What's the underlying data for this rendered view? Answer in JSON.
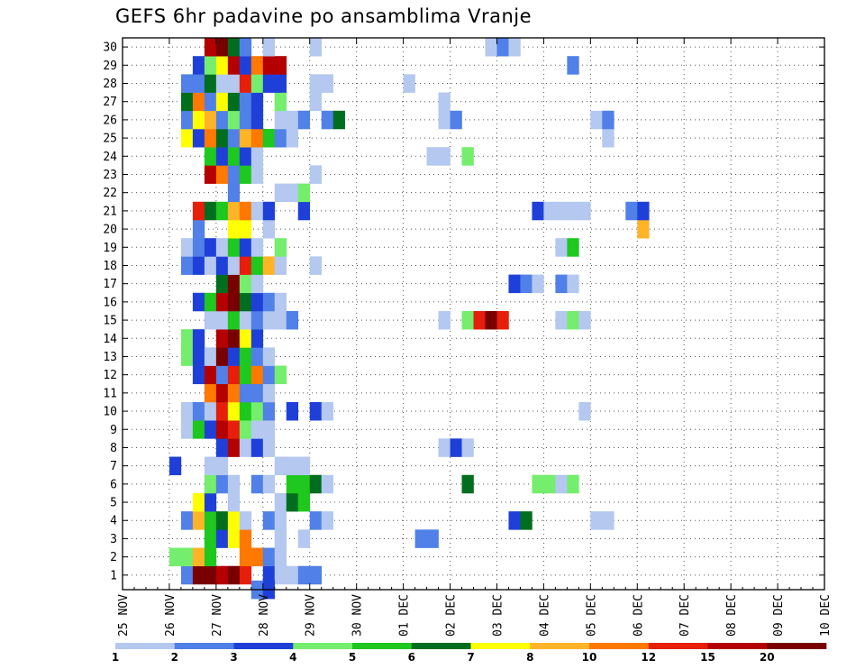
{
  "chart_data": {
    "type": "heatmap",
    "title": "GEFS 6hr padavine po ansamblima Vranje",
    "x_ticks": [
      "25 NOV",
      "26 NOV",
      "27 NOV",
      "28 NOV",
      "29 NOV",
      "30 NOV",
      "01 DEC",
      "02 DEC",
      "03 DEC",
      "04 DEC",
      "05 DEC",
      "06 DEC",
      "07 DEC",
      "08 DEC",
      "09 DEC",
      "10 DEC"
    ],
    "y_ticks": [
      "1",
      "2",
      "3",
      "4",
      "5",
      "6",
      "7",
      "8",
      "9",
      "10",
      "11",
      "12",
      "13",
      "14",
      "15",
      "16",
      "17",
      "18",
      "19",
      "20",
      "21",
      "22",
      "23",
      "24",
      "25",
      "26",
      "27",
      "28",
      "29",
      "30"
    ],
    "x_unit": "6-hour steps from 25 NOV 00Z",
    "ylim": [
      0.2,
      30.5
    ],
    "legend": {
      "labels": [
        "1",
        "2",
        "3",
        "4",
        "5",
        "6",
        "7",
        "8",
        "10",
        "12",
        "15",
        "20"
      ],
      "colors": [
        "#b4c8f0",
        "#5080e8",
        "#1f40d8",
        "#74ee6c",
        "#1ec81e",
        "#006e1e",
        "#ffff00",
        "#ffb428",
        "#ff7800",
        "#e61e0a",
        "#b40000",
        "#780000"
      ]
    },
    "cells": [
      [
        5,
        1,
        1
      ],
      [
        6,
        1,
        11
      ],
      [
        7,
        1,
        11
      ],
      [
        8,
        1,
        10
      ],
      [
        9,
        1,
        11
      ],
      [
        10,
        1,
        9
      ],
      [
        12,
        1,
        2
      ],
      [
        13,
        1,
        0
      ],
      [
        14,
        1,
        0
      ],
      [
        15,
        1,
        1
      ],
      [
        16,
        1,
        1
      ],
      [
        11,
        0.2,
        1
      ],
      [
        12,
        0.2,
        2
      ],
      [
        4,
        2,
        3
      ],
      [
        5,
        2,
        3
      ],
      [
        6,
        2,
        7
      ],
      [
        7,
        2,
        4
      ],
      [
        10,
        2,
        8
      ],
      [
        11,
        2,
        8
      ],
      [
        12,
        2,
        1
      ],
      [
        13,
        2,
        0
      ],
      [
        7,
        3,
        4
      ],
      [
        8,
        3,
        2
      ],
      [
        9,
        3,
        6
      ],
      [
        10,
        3,
        8
      ],
      [
        13,
        3,
        0
      ],
      [
        15,
        3,
        0
      ],
      [
        25,
        3,
        1
      ],
      [
        26,
        3,
        1
      ],
      [
        5,
        4,
        1
      ],
      [
        6,
        4,
        7
      ],
      [
        7,
        4,
        4
      ],
      [
        8,
        4,
        5
      ],
      [
        9,
        4,
        6
      ],
      [
        10,
        4,
        0
      ],
      [
        12,
        4,
        1
      ],
      [
        13,
        4,
        0
      ],
      [
        16,
        4,
        1
      ],
      [
        17,
        4,
        0
      ],
      [
        33,
        4,
        2
      ],
      [
        34,
        4,
        5
      ],
      [
        40,
        4,
        0
      ],
      [
        41,
        4,
        0
      ],
      [
        6,
        5,
        6
      ],
      [
        7,
        5,
        2
      ],
      [
        9,
        5,
        0
      ],
      [
        13,
        5,
        0
      ],
      [
        14,
        5,
        5
      ],
      [
        15,
        5,
        4
      ],
      [
        7,
        6,
        3
      ],
      [
        8,
        6,
        1
      ],
      [
        9,
        6,
        0
      ],
      [
        11,
        6,
        1
      ],
      [
        12,
        6,
        0
      ],
      [
        14,
        6,
        4
      ],
      [
        15,
        6,
        4
      ],
      [
        16,
        6,
        5
      ],
      [
        17,
        6,
        0
      ],
      [
        29,
        6,
        5
      ],
      [
        35,
        6,
        3
      ],
      [
        36,
        6,
        3
      ],
      [
        37,
        6,
        0
      ],
      [
        38,
        6,
        3
      ],
      [
        4,
        7,
        2
      ],
      [
        7,
        7,
        0
      ],
      [
        8,
        7,
        0
      ],
      [
        13,
        7,
        0
      ],
      [
        14,
        7,
        0
      ],
      [
        15,
        7,
        0
      ],
      [
        8,
        8,
        2
      ],
      [
        9,
        8,
        10
      ],
      [
        10,
        8,
        0
      ],
      [
        11,
        8,
        2
      ],
      [
        12,
        8,
        0
      ],
      [
        27,
        8,
        0
      ],
      [
        28,
        8,
        2
      ],
      [
        29,
        8,
        0
      ],
      [
        5,
        9,
        0
      ],
      [
        6,
        9,
        4
      ],
      [
        7,
        9,
        2
      ],
      [
        8,
        9,
        10
      ],
      [
        9,
        9,
        9
      ],
      [
        10,
        9,
        3
      ],
      [
        11,
        9,
        0
      ],
      [
        12,
        9,
        0
      ],
      [
        5,
        10,
        0
      ],
      [
        6,
        10,
        1
      ],
      [
        7,
        10,
        0
      ],
      [
        8,
        10,
        9
      ],
      [
        9,
        10,
        6
      ],
      [
        10,
        10,
        4
      ],
      [
        11,
        10,
        3
      ],
      [
        12,
        10,
        1
      ],
      [
        14,
        10,
        2
      ],
      [
        16,
        10,
        2
      ],
      [
        17,
        10,
        0
      ],
      [
        39,
        10,
        0
      ],
      [
        7,
        11,
        8
      ],
      [
        8,
        11,
        10
      ],
      [
        9,
        11,
        8
      ],
      [
        10,
        11,
        1
      ],
      [
        11,
        11,
        1
      ],
      [
        12,
        11,
        0
      ],
      [
        6,
        12,
        2
      ],
      [
        7,
        12,
        10
      ],
      [
        8,
        12,
        1
      ],
      [
        9,
        12,
        9
      ],
      [
        10,
        12,
        4
      ],
      [
        11,
        12,
        8
      ],
      [
        12,
        12,
        1
      ],
      [
        13,
        12,
        3
      ],
      [
        5,
        13,
        3
      ],
      [
        6,
        13,
        2
      ],
      [
        7,
        13,
        0
      ],
      [
        8,
        13,
        11
      ],
      [
        9,
        13,
        2
      ],
      [
        10,
        13,
        4
      ],
      [
        11,
        13,
        1
      ],
      [
        12,
        13,
        0
      ],
      [
        5,
        14,
        3
      ],
      [
        6,
        14,
        2
      ],
      [
        8,
        14,
        10
      ],
      [
        9,
        14,
        11
      ],
      [
        10,
        14,
        6
      ],
      [
        11,
        14,
        2
      ],
      [
        7,
        15,
        0
      ],
      [
        8,
        15,
        0
      ],
      [
        9,
        15,
        4
      ],
      [
        10,
        15,
        0
      ],
      [
        11,
        15,
        1
      ],
      [
        12,
        15,
        0
      ],
      [
        13,
        15,
        0
      ],
      [
        14,
        15,
        1
      ],
      [
        27,
        15,
        0
      ],
      [
        29,
        15,
        3
      ],
      [
        30,
        15,
        9
      ],
      [
        31,
        15,
        11
      ],
      [
        32,
        15,
        9
      ],
      [
        37,
        15,
        0
      ],
      [
        38,
        15,
        3
      ],
      [
        39,
        15,
        0
      ],
      [
        6,
        16,
        2
      ],
      [
        7,
        16,
        4
      ],
      [
        8,
        16,
        10
      ],
      [
        9,
        16,
        11
      ],
      [
        10,
        16,
        5
      ],
      [
        11,
        16,
        2
      ],
      [
        12,
        16,
        1
      ],
      [
        13,
        16,
        0
      ],
      [
        8,
        17,
        5
      ],
      [
        9,
        17,
        11
      ],
      [
        10,
        17,
        3
      ],
      [
        11,
        17,
        0
      ],
      [
        33,
        17,
        2
      ],
      [
        34,
        17,
        1
      ],
      [
        35,
        17,
        0
      ],
      [
        37,
        17,
        1
      ],
      [
        38,
        17,
        0
      ],
      [
        5,
        18,
        1
      ],
      [
        6,
        18,
        2
      ],
      [
        7,
        18,
        0
      ],
      [
        8,
        18,
        2
      ],
      [
        9,
        18,
        0
      ],
      [
        10,
        18,
        9
      ],
      [
        11,
        18,
        4
      ],
      [
        12,
        18,
        7
      ],
      [
        13,
        18,
        0
      ],
      [
        16,
        18,
        0
      ],
      [
        5,
        19,
        0
      ],
      [
        6,
        19,
        1
      ],
      [
        7,
        19,
        2
      ],
      [
        8,
        19,
        0
      ],
      [
        9,
        19,
        4
      ],
      [
        10,
        19,
        2
      ],
      [
        11,
        19,
        0
      ],
      [
        13,
        19,
        3
      ],
      [
        37,
        19,
        0
      ],
      [
        38,
        19,
        4
      ],
      [
        6,
        20,
        1
      ],
      [
        9,
        20,
        6
      ],
      [
        10,
        20,
        6
      ],
      [
        12,
        20,
        0
      ],
      [
        44,
        20,
        7
      ],
      [
        6,
        21,
        9
      ],
      [
        7,
        21,
        5
      ],
      [
        8,
        21,
        4
      ],
      [
        9,
        21,
        7
      ],
      [
        10,
        21,
        8
      ],
      [
        11,
        21,
        0
      ],
      [
        12,
        21,
        2
      ],
      [
        15,
        21,
        2
      ],
      [
        35,
        21,
        2
      ],
      [
        36,
        21,
        0
      ],
      [
        37,
        21,
        0
      ],
      [
        38,
        21,
        0
      ],
      [
        39,
        21,
        0
      ],
      [
        43,
        21,
        1
      ],
      [
        44,
        21,
        2
      ],
      [
        9,
        22,
        1
      ],
      [
        13,
        22,
        0
      ],
      [
        14,
        22,
        0
      ],
      [
        15,
        22,
        3
      ],
      [
        7,
        23,
        10
      ],
      [
        8,
        23,
        8
      ],
      [
        9,
        23,
        1
      ],
      [
        10,
        23,
        4
      ],
      [
        11,
        23,
        0
      ],
      [
        16,
        23,
        0
      ],
      [
        7,
        24,
        4
      ],
      [
        8,
        24,
        2
      ],
      [
        9,
        24,
        4
      ],
      [
        10,
        24,
        2
      ],
      [
        11,
        24,
        0
      ],
      [
        26,
        24,
        0
      ],
      [
        27,
        24,
        0
      ],
      [
        29,
        24,
        3
      ],
      [
        5,
        25,
        6
      ],
      [
        6,
        25,
        2
      ],
      [
        7,
        25,
        8
      ],
      [
        8,
        25,
        5
      ],
      [
        9,
        25,
        1
      ],
      [
        10,
        25,
        7
      ],
      [
        11,
        25,
        8
      ],
      [
        12,
        25,
        4
      ],
      [
        13,
        25,
        1
      ],
      [
        14,
        25,
        0
      ],
      [
        41,
        25,
        0
      ],
      [
        5,
        26,
        1
      ],
      [
        6,
        26,
        6
      ],
      [
        7,
        26,
        7
      ],
      [
        8,
        26,
        1
      ],
      [
        9,
        26,
        3
      ],
      [
        10,
        26,
        1
      ],
      [
        11,
        26,
        2
      ],
      [
        13,
        26,
        0
      ],
      [
        14,
        26,
        0
      ],
      [
        15,
        26,
        1
      ],
      [
        17,
        26,
        1
      ],
      [
        18,
        26,
        5
      ],
      [
        27,
        26,
        0
      ],
      [
        28,
        26,
        1
      ],
      [
        40,
        26,
        0
      ],
      [
        41,
        26,
        1
      ],
      [
        5,
        27,
        5
      ],
      [
        6,
        27,
        8
      ],
      [
        7,
        27,
        1
      ],
      [
        8,
        27,
        6
      ],
      [
        9,
        27,
        5
      ],
      [
        10,
        27,
        1
      ],
      [
        11,
        27,
        2
      ],
      [
        13,
        27,
        3
      ],
      [
        16,
        27,
        0
      ],
      [
        27,
        27,
        0
      ],
      [
        5,
        28,
        1
      ],
      [
        6,
        28,
        1
      ],
      [
        7,
        28,
        5
      ],
      [
        8,
        28,
        0
      ],
      [
        9,
        28,
        0
      ],
      [
        10,
        28,
        9
      ],
      [
        11,
        28,
        3
      ],
      [
        12,
        28,
        2
      ],
      [
        13,
        28,
        2
      ],
      [
        16,
        28,
        0
      ],
      [
        17,
        28,
        0
      ],
      [
        24,
        28,
        0
      ],
      [
        6,
        29,
        2
      ],
      [
        7,
        29,
        3
      ],
      [
        8,
        29,
        6
      ],
      [
        9,
        29,
        10
      ],
      [
        10,
        29,
        2
      ],
      [
        11,
        29,
        8
      ],
      [
        12,
        29,
        10
      ],
      [
        13,
        29,
        10
      ],
      [
        38,
        29,
        1
      ],
      [
        7,
        30,
        10
      ],
      [
        8,
        30,
        11
      ],
      [
        9,
        30,
        5
      ],
      [
        10,
        30,
        1
      ],
      [
        12,
        30,
        0
      ],
      [
        16,
        30,
        0
      ],
      [
        31,
        30,
        0
      ],
      [
        32,
        30,
        1
      ],
      [
        33,
        30,
        0
      ]
    ]
  }
}
